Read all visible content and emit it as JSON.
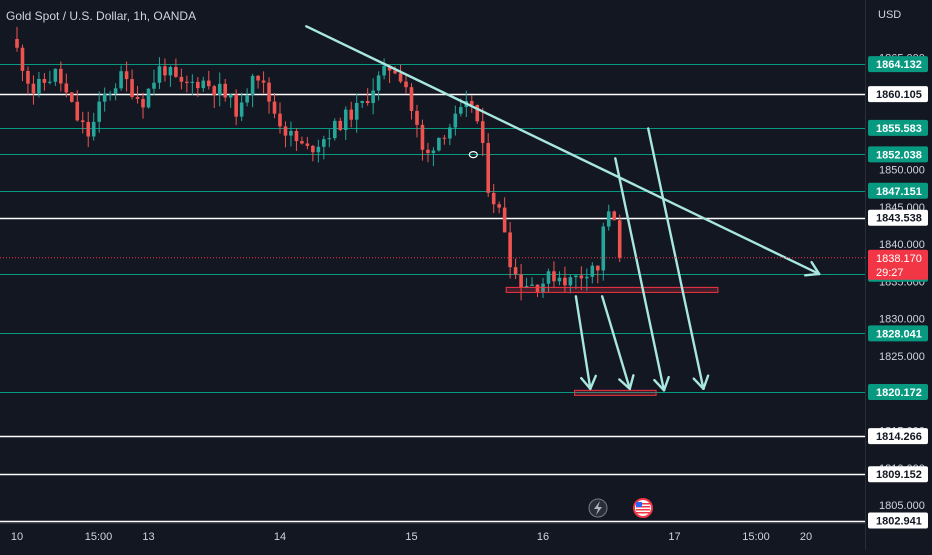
{
  "header": {
    "symbol_title": "Gold Spot / U.S. Dollar, 1h, OANDA",
    "currency": "USD"
  },
  "colors": {
    "background": "#131722",
    "up": "#26a69a",
    "down": "#ef5350",
    "green_level": "#089981",
    "white_level": "#ffffff",
    "trendline": "#a8e6e0",
    "zone": "#f23645",
    "current_price_bg": "#f23645",
    "axis_text": "#d1d4dc"
  },
  "chart_data": {
    "type": "candlestick",
    "y_range": [
      1800.6,
      1867.5
    ],
    "x_ticks": [
      {
        "label": "10",
        "day": 0.0
      },
      {
        "label": "15:00",
        "day": 0.62
      },
      {
        "label": "13",
        "day": 1.0
      },
      {
        "label": "14",
        "day": 2.0
      },
      {
        "label": "15",
        "day": 3.0
      },
      {
        "label": "16",
        "day": 4.0
      },
      {
        "label": "17",
        "day": 5.0
      },
      {
        "label": "15:00",
        "day": 5.62
      },
      {
        "label": "20",
        "day": 6.0
      }
    ],
    "y_ticks": [
      "1865.000",
      "1850.000",
      "1845.000",
      "1840.000",
      "1835.000",
      "1830.000",
      "1825.000",
      "1815.000",
      "1810.000",
      "1805.000"
    ],
    "y_tick_values": [
      1865,
      1850,
      1845,
      1840,
      1835,
      1830,
      1825,
      1815,
      1810,
      1805
    ],
    "horizontal_levels": [
      {
        "price": "1864.132",
        "color": "green"
      },
      {
        "price": "1860.105",
        "color": "white"
      },
      {
        "price": "1855.583",
        "color": "green"
      },
      {
        "price": "1852.038",
        "color": "green"
      },
      {
        "price": "1847.151",
        "color": "green"
      },
      {
        "price": "1843.538",
        "color": "white"
      },
      {
        "price": "1836.034",
        "color": "green"
      },
      {
        "price": "1828.041",
        "color": "green"
      },
      {
        "price": "1820.172",
        "color": "green"
      },
      {
        "price": "1814.266",
        "color": "white"
      },
      {
        "price": "1809.152",
        "color": "white"
      },
      {
        "price": "1802.941",
        "color": "white"
      }
    ],
    "current_price": {
      "price": "1838.170",
      "countdown": "29:27"
    },
    "close_anchors": [
      [
        0.0,
        1866.0
      ],
      [
        0.12,
        1860.5
      ],
      [
        0.3,
        1863.0
      ],
      [
        0.45,
        1857.0
      ],
      [
        0.55,
        1854.5
      ],
      [
        0.65,
        1859.5
      ],
      [
        0.8,
        1862.5
      ],
      [
        0.95,
        1859.0
      ],
      [
        1.1,
        1864.0
      ],
      [
        1.25,
        1861.0
      ],
      [
        1.4,
        1862.0
      ],
      [
        1.55,
        1860.5
      ],
      [
        1.7,
        1857.5
      ],
      [
        1.8,
        1864.0
      ],
      [
        1.95,
        1858.0
      ],
      [
        2.05,
        1855.0
      ],
      [
        2.2,
        1852.5
      ],
      [
        2.35,
        1854.5
      ],
      [
        2.5,
        1857.0
      ],
      [
        2.62,
        1858.5
      ],
      [
        2.72,
        1861.5
      ],
      [
        2.85,
        1864.0
      ],
      [
        2.95,
        1862.0
      ],
      [
        3.0,
        1858.0
      ],
      [
        3.05,
        1855.0
      ],
      [
        3.1,
        1851.0
      ],
      [
        3.18,
        1854.0
      ],
      [
        3.3,
        1856.0
      ],
      [
        3.38,
        1857.5
      ],
      [
        3.46,
        1859.0
      ],
      [
        3.52,
        1855.0
      ],
      [
        3.58,
        1848.0
      ],
      [
        3.65,
        1845.0
      ],
      [
        3.7,
        1843.0
      ],
      [
        3.76,
        1837.0
      ],
      [
        3.82,
        1835.0
      ],
      [
        3.95,
        1834.5
      ],
      [
        4.1,
        1836.0
      ],
      [
        4.2,
        1835.0
      ],
      [
        4.3,
        1836.0
      ],
      [
        4.38,
        1837.5
      ],
      [
        4.42,
        1836.0
      ],
      [
        4.46,
        1843.0
      ],
      [
        4.52,
        1844.0
      ],
      [
        4.57,
        1842.0
      ],
      [
        4.62,
        1840.0
      ]
    ],
    "drawings": {
      "descending_trendline": {
        "from": [
          2.2,
          1869.2
        ],
        "to": [
          6.1,
          1836.0
        ],
        "arrow_head": true
      },
      "breakout_tick": {
        "day": 3.47,
        "price": "1852.0"
      },
      "zone_upper": {
        "day_from": 3.72,
        "day_to": 5.33,
        "price_top": 1834.2,
        "price_bottom": 1833.6
      },
      "zone_lower": {
        "day_from": 4.24,
        "day_to": 4.86,
        "price_top": 1820.4,
        "price_bottom": 1819.8
      },
      "down_arrows": [
        {
          "from": [
            4.25,
            1833.0
          ],
          "to": [
            4.36,
            1820.6
          ]
        },
        {
          "from": [
            4.45,
            1833.0
          ],
          "to": [
            4.66,
            1820.6
          ]
        },
        {
          "from": [
            4.55,
            1851.5
          ],
          "to": [
            4.92,
            1820.4
          ]
        },
        {
          "from": [
            4.8,
            1855.5
          ],
          "to": [
            5.22,
            1820.6
          ]
        }
      ]
    }
  },
  "bottom_icons": [
    "lightning-icon",
    "us-flag-icon"
  ]
}
